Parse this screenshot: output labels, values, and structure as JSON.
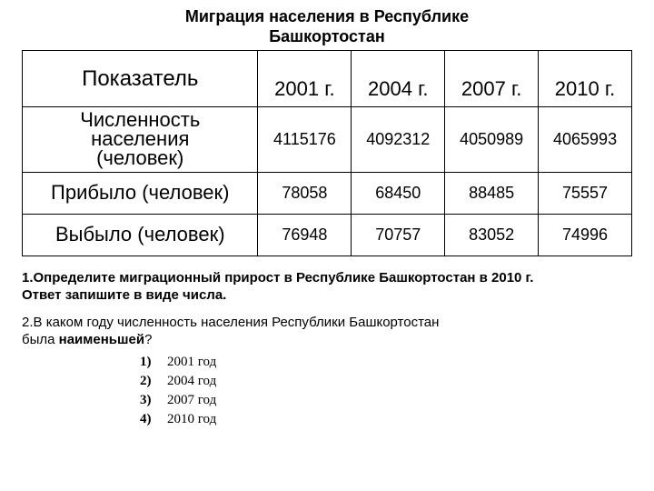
{
  "title_line1": "Миграция населения в Республике",
  "title_line2": "Башкортостан",
  "table": {
    "header_indicator": "Показатель",
    "years": [
      "2001 г.",
      "2004 г.",
      "2007 г.",
      "2010 г."
    ],
    "rows": [
      {
        "label_l1": "Численность",
        "label_l2": "населения",
        "label_l3": "(человек)",
        "multiline": true,
        "values": [
          "4115176",
          "4092312",
          "4050989",
          "4065993"
        ]
      },
      {
        "label": "Прибыло (человек)",
        "multiline": false,
        "values": [
          "78058",
          "68450",
          "88485",
          "75557"
        ]
      },
      {
        "label": "Выбыло (человек)",
        "multiline": false,
        "values": [
          "76948",
          "70757",
          "83052",
          "74996"
        ]
      }
    ]
  },
  "question1_l1": "1.Определите миграционный прирост в Республике Башкортостан в  2010 г.",
  "question1_l2": "Ответ запишите в виде числа.",
  "question2_prefix": "2.",
  "question2_l1_a": "В каком году численность населения Республики Башкортостан",
  "question2_l2_a": "была ",
  "question2_l2_b": "наименьшей",
  "question2_l2_c": "?",
  "options": [
    {
      "num": "1)",
      "label": "2001 год"
    },
    {
      "num": "2)",
      "label": "2004 год"
    },
    {
      "num": "3)",
      "label": "2007 год"
    },
    {
      "num": "4)",
      "label": "2010 год"
    }
  ],
  "style": {
    "bg": "#ffffff",
    "text": "#000000",
    "border": "#000000"
  }
}
